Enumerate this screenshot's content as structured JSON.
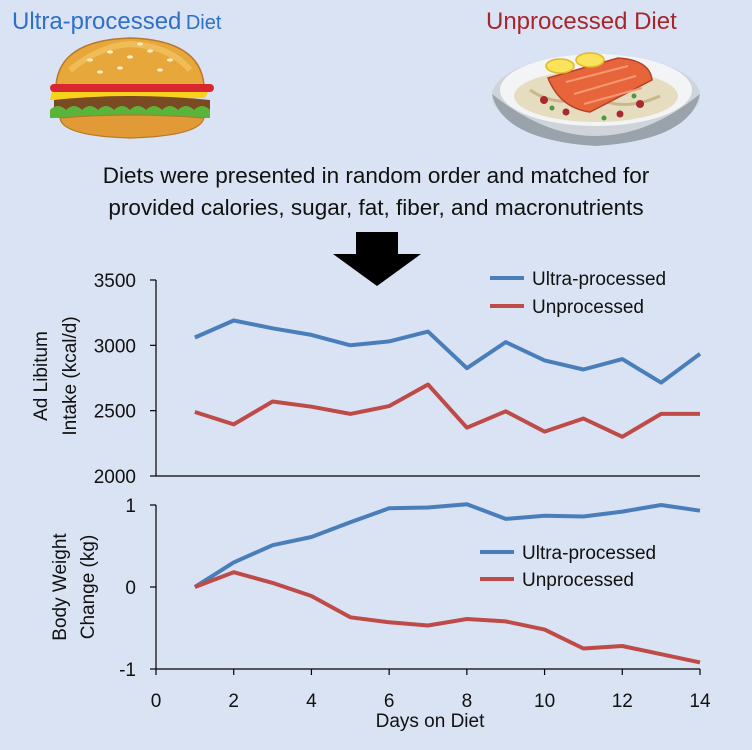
{
  "header": {
    "left_title_main": "Ultra-processed",
    "left_title_suffix": "Diet",
    "right_title": "Unprocessed Diet"
  },
  "caption": {
    "line1": "Diets were presented in random order and matched for",
    "line2": "provided calories, sugar, fat, fiber, and macronutrients"
  },
  "icons": {
    "left": "burger-icon",
    "right": "salmon-dish-icon",
    "arrow": "arrow-down-icon"
  },
  "colors": {
    "ultra": "#4a7ebb",
    "unprocessed": "#be4b48",
    "background": "#dae3f3"
  },
  "chart_data": [
    {
      "type": "line",
      "title": "",
      "xlabel": "",
      "ylabel_line1": "Ad Libitum",
      "ylabel_line2": "Intake (kcal/d)",
      "ylim": [
        2000,
        3500
      ],
      "yticks": [
        2000,
        2500,
        3000,
        3500
      ],
      "ytick_labels": [
        "2000",
        "2500",
        "3000",
        "3500"
      ],
      "x": [
        1,
        2,
        3,
        4,
        5,
        6,
        7,
        8,
        9,
        10,
        11,
        12,
        13,
        14
      ],
      "legend_position": "top-right",
      "series": [
        {
          "name": "Ultra-processed",
          "color": "#4a7ebb",
          "values": [
            3060,
            3190,
            3130,
            3080,
            3000,
            3030,
            3105,
            2825,
            3025,
            2885,
            2815,
            2895,
            2715,
            2935
          ]
        },
        {
          "name": "Unprocessed",
          "color": "#be4b48",
          "values": [
            2490,
            2395,
            2570,
            2530,
            2475,
            2535,
            2700,
            2370,
            2495,
            2340,
            2440,
            2300,
            2475,
            2475
          ]
        }
      ]
    },
    {
      "type": "line",
      "title": "",
      "xlabel": "Days on Diet",
      "ylabel_line1": "Body Weight",
      "ylabel_line2": "Change (kg)",
      "ylim": [
        -1,
        1
      ],
      "xlim": [
        0,
        14
      ],
      "yticks": [
        -1,
        0,
        1
      ],
      "ytick_labels": [
        "-1",
        "0",
        "1"
      ],
      "xticks": [
        0,
        2,
        4,
        6,
        8,
        10,
        12,
        14
      ],
      "xtick_labels": [
        "0",
        "2",
        "4",
        "6",
        "8",
        "10",
        "12",
        "14"
      ],
      "x": [
        1,
        2,
        3,
        4,
        5,
        6,
        7,
        8,
        9,
        10,
        11,
        12,
        13,
        14
      ],
      "legend_position": "center-right",
      "series": [
        {
          "name": "Ultra-processed",
          "color": "#4a7ebb",
          "values": [
            0,
            0.3,
            0.51,
            0.61,
            0.79,
            0.96,
            0.97,
            1.01,
            0.83,
            0.87,
            0.86,
            0.92,
            1.0,
            0.93
          ]
        },
        {
          "name": "Unprocessed",
          "color": "#be4b48",
          "values": [
            0,
            0.18,
            0.05,
            -0.11,
            -0.37,
            -0.43,
            -0.47,
            -0.39,
            -0.42,
            -0.52,
            -0.75,
            -0.72,
            -0.82,
            -0.92
          ]
        }
      ]
    }
  ]
}
